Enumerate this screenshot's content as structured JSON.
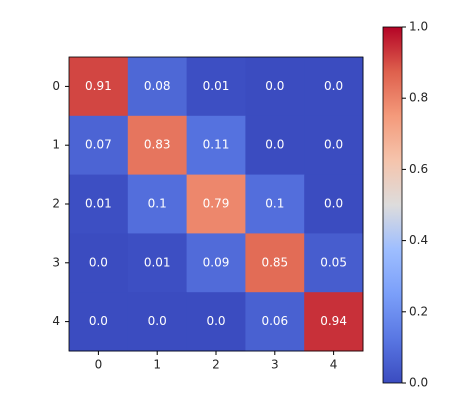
{
  "chart_data": {
    "type": "heatmap",
    "x_categories": [
      "0",
      "1",
      "2",
      "3",
      "4"
    ],
    "y_categories": [
      "0",
      "1",
      "2",
      "3",
      "4"
    ],
    "values": [
      [
        0.91,
        0.08,
        0.01,
        0.0,
        0.0
      ],
      [
        0.07,
        0.83,
        0.11,
        0.0,
        0.0
      ],
      [
        0.01,
        0.1,
        0.79,
        0.1,
        0.0
      ],
      [
        0.0,
        0.01,
        0.09,
        0.85,
        0.05
      ],
      [
        0.0,
        0.0,
        0.0,
        0.06,
        0.94
      ]
    ],
    "value_labels": [
      [
        "0.91",
        "0.08",
        "0.01",
        "0.0",
        "0.0"
      ],
      [
        "0.07",
        "0.83",
        "0.11",
        "0.0",
        "0.0"
      ],
      [
        "0.01",
        "0.1",
        "0.79",
        "0.1",
        "0.0"
      ],
      [
        "0.0",
        "0.01",
        "0.09",
        "0.85",
        "0.05"
      ],
      [
        "0.0",
        "0.0",
        "0.0",
        "0.06",
        "0.94"
      ]
    ],
    "colormap": "coolwarm",
    "clim": [
      0,
      1
    ],
    "cticks": [
      {
        "value": 0,
        "label": "0.0"
      },
      {
        "value": 0.2,
        "label": "0.2"
      },
      {
        "value": 0.4,
        "label": "0.4"
      },
      {
        "value": 0.6,
        "label": "0.6"
      },
      {
        "value": 0.8,
        "label": "0.8"
      },
      {
        "value": 1,
        "label": "1.0"
      }
    ]
  }
}
